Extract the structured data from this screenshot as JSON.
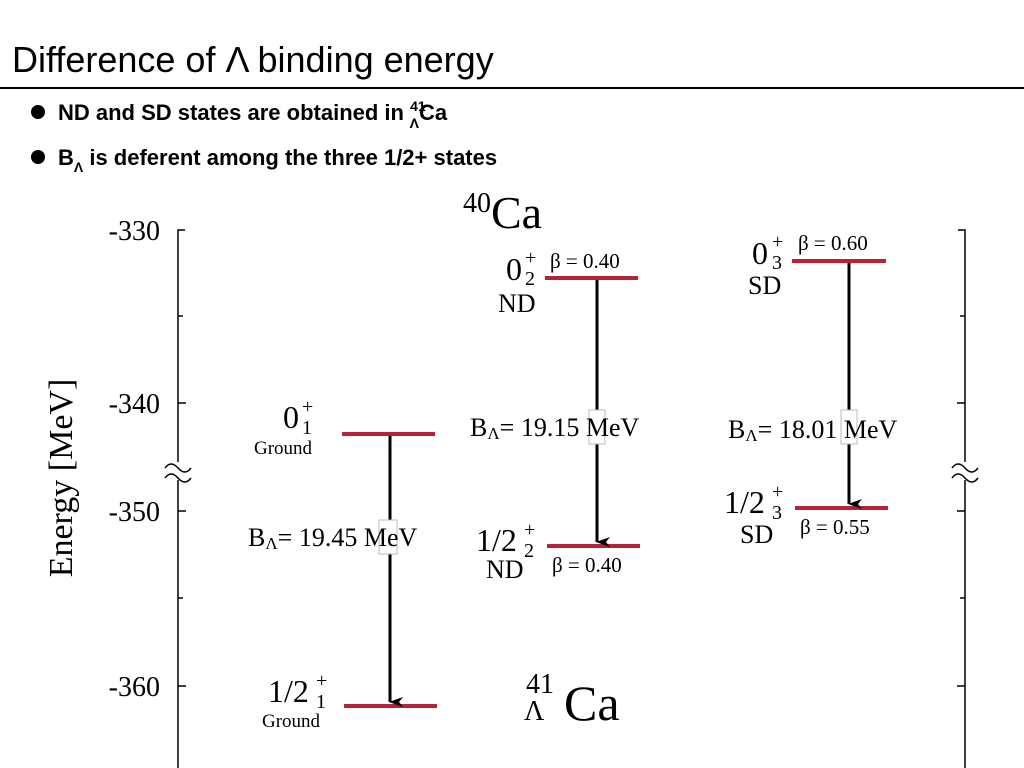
{
  "header": {
    "title": "Difference of Λ binding energy"
  },
  "bullets": [
    {
      "text": "ND and SD states are obtained in ",
      "sup": "41",
      "sub": "Λ",
      "tail": "Ca"
    },
    {
      "head": "B",
      "sub": "Λ",
      "tail": " is deferent among the three 1/2+ states"
    }
  ],
  "diagram": {
    "y_axis_label": "Energy [MeV]",
    "y_ticks": [
      "-330",
      "-340",
      "-350",
      "-360"
    ],
    "parent_nucleus": {
      "mass": "40",
      "symbol": "Ca"
    },
    "hypernucleus": {
      "mass": "41",
      "hyperon": "Λ",
      "symbol": "Ca"
    },
    "levels": [
      {
        "base": "0",
        "sup": "+",
        "sub": "1",
        "note": "Ground"
      },
      {
        "base": "1/2",
        "sup": "+",
        "sub": "1",
        "note": "Ground"
      },
      {
        "base": "0",
        "sup": "+",
        "sub": "2",
        "note": "ND",
        "beta": "β = 0.40"
      },
      {
        "base": "1/2",
        "sup": "+",
        "sub": "2",
        "note": "ND",
        "beta": "β = 0.40"
      },
      {
        "base": "0",
        "sup": "+",
        "sub": "3",
        "note": "SD",
        "beta": "β = 0.60"
      },
      {
        "base": "1/2",
        "sup": "+",
        "sub": "3",
        "note": "SD",
        "beta": "β = 0.55"
      }
    ],
    "transitions": [
      {
        "head": "B",
        "sub": "Λ",
        "text": "= 19.45 MeV"
      },
      {
        "head": "B",
        "sub": "Λ",
        "text": "= 19.15 MeV"
      },
      {
        "head": "B",
        "sub": "Λ",
        "text": "= 18.01 MeV"
      }
    ]
  }
}
